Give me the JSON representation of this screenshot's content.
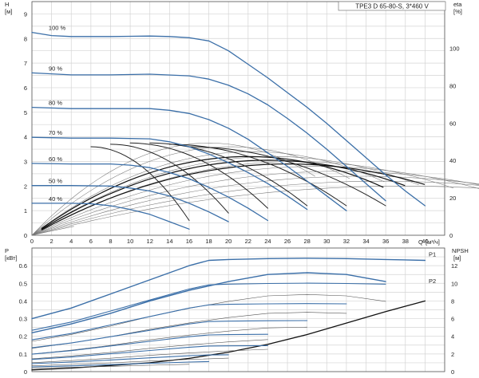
{
  "chart_data": [
    {
      "type": "line",
      "title": "TPE3 D 65-80-S, 3*460 V",
      "ylabel": "H",
      "yunit": "[м]",
      "y2label": "eta",
      "y2unit": "[%]",
      "xlabel": "Q",
      "xunit": "[м³/ч]",
      "xlim": [
        0,
        42
      ],
      "ylim": [
        0,
        9.5
      ],
      "y2lim": [
        0,
        125
      ],
      "xticks": [
        "0",
        "2",
        "4",
        "6",
        "8",
        "10",
        "12",
        "14",
        "16",
        "18",
        "20",
        "22",
        "24",
        "26",
        "28",
        "30",
        "32",
        "34",
        "36",
        "38",
        "40"
      ],
      "yticks": [
        "0",
        "1",
        "2",
        "3",
        "4",
        "5",
        "6",
        "7",
        "8",
        "9"
      ],
      "y2ticks": [
        "0",
        "20",
        "40",
        "60",
        "80",
        "100"
      ],
      "grid": true,
      "series": [
        {
          "name": "100 %",
          "x": [
            0,
            2,
            4,
            6,
            8,
            10,
            12,
            14,
            16,
            18,
            20,
            22,
            24,
            26,
            28,
            30,
            32,
            34,
            36,
            38,
            40
          ],
          "y": [
            8.25,
            8.12,
            8.08,
            8.08,
            8.08,
            8.09,
            8.1,
            8.08,
            8.03,
            7.9,
            7.5,
            6.95,
            6.4,
            5.8,
            5.2,
            4.55,
            3.85,
            3.15,
            2.45,
            1.8,
            1.2
          ]
        },
        {
          "name": "90 %",
          "x": [
            0,
            4,
            8,
            12,
            16,
            18,
            20,
            22,
            24,
            26,
            28,
            30,
            32,
            34,
            36
          ],
          "y": [
            6.6,
            6.52,
            6.52,
            6.55,
            6.48,
            6.35,
            6.1,
            5.75,
            5.3,
            4.75,
            4.15,
            3.5,
            2.8,
            2.1,
            1.4
          ]
        },
        {
          "name": "80 %",
          "x": [
            0,
            4,
            8,
            12,
            14,
            16,
            18,
            20,
            22,
            24,
            26,
            28,
            30,
            32
          ],
          "y": [
            5.2,
            5.15,
            5.15,
            5.15,
            5.08,
            4.95,
            4.7,
            4.35,
            3.9,
            3.35,
            2.8,
            2.2,
            1.6,
            1.0
          ]
        },
        {
          "name": "70 %",
          "x": [
            0,
            4,
            8,
            12,
            14,
            16,
            18,
            20,
            22,
            24,
            26,
            28
          ],
          "y": [
            3.98,
            3.95,
            3.95,
            3.92,
            3.8,
            3.6,
            3.3,
            2.95,
            2.55,
            2.1,
            1.6,
            1.05
          ]
        },
        {
          "name": "60 %",
          "x": [
            0,
            4,
            8,
            10,
            12,
            14,
            16,
            18,
            20,
            22,
            24
          ],
          "y": [
            2.92,
            2.9,
            2.9,
            2.85,
            2.75,
            2.55,
            2.3,
            1.95,
            1.55,
            1.1,
            0.6
          ]
        },
        {
          "name": "50 %",
          "x": [
            0,
            4,
            8,
            10,
            12,
            14,
            16,
            18,
            20
          ],
          "y": [
            2.02,
            2.02,
            2.0,
            1.92,
            1.8,
            1.6,
            1.3,
            0.95,
            0.55
          ]
        },
        {
          "name": "40 %",
          "x": [
            0,
            4,
            6,
            8,
            10,
            12,
            14,
            16
          ],
          "y": [
            1.3,
            1.3,
            1.28,
            1.2,
            1.05,
            0.85,
            0.55,
            0.25
          ]
        }
      ],
      "annotations": [
        "100 %",
        "90 %",
        "80 %",
        "70 %",
        "60 %",
        "50 %",
        "40 %"
      ]
    },
    {
      "type": "line",
      "ylabel": "P",
      "yunit": "[кВт]",
      "y2label": "NPSH",
      "y2unit": "[м]",
      "xlim": [
        0,
        42
      ],
      "ylim": [
        0,
        0.7
      ],
      "y2lim": [
        0,
        14
      ],
      "yticks": [
        "0",
        "0.1",
        "0.2",
        "0.3",
        "0.4",
        "0.5",
        "0.6"
      ],
      "y2ticks": [
        "0",
        "2",
        "4",
        "6",
        "8",
        "10",
        "12"
      ],
      "grid": true,
      "series": [
        {
          "name": "P1",
          "x": [
            0,
            4,
            8,
            12,
            16,
            18,
            20,
            24,
            28,
            32,
            36,
            40
          ],
          "y": [
            0.3,
            0.36,
            0.44,
            0.52,
            0.6,
            0.63,
            0.635,
            0.64,
            0.642,
            0.64,
            0.635,
            0.63
          ]
        },
        {
          "name": "P2",
          "x": [
            0,
            4,
            8,
            12,
            16,
            20,
            24,
            28,
            32,
            36
          ],
          "y": [
            0.22,
            0.27,
            0.33,
            0.4,
            0.46,
            0.51,
            0.55,
            0.56,
            0.55,
            0.51
          ]
        },
        {
          "name": "NPSH",
          "x": [
            0,
            4,
            8,
            12,
            16,
            20,
            24,
            28,
            32,
            36,
            40
          ],
          "y2": [
            0.2,
            0.4,
            0.7,
            1.0,
            1.5,
            2.2,
            3.1,
            4.2,
            5.5,
            6.8,
            8.0
          ]
        }
      ],
      "annotations": [
        "P1",
        "P2"
      ]
    }
  ]
}
